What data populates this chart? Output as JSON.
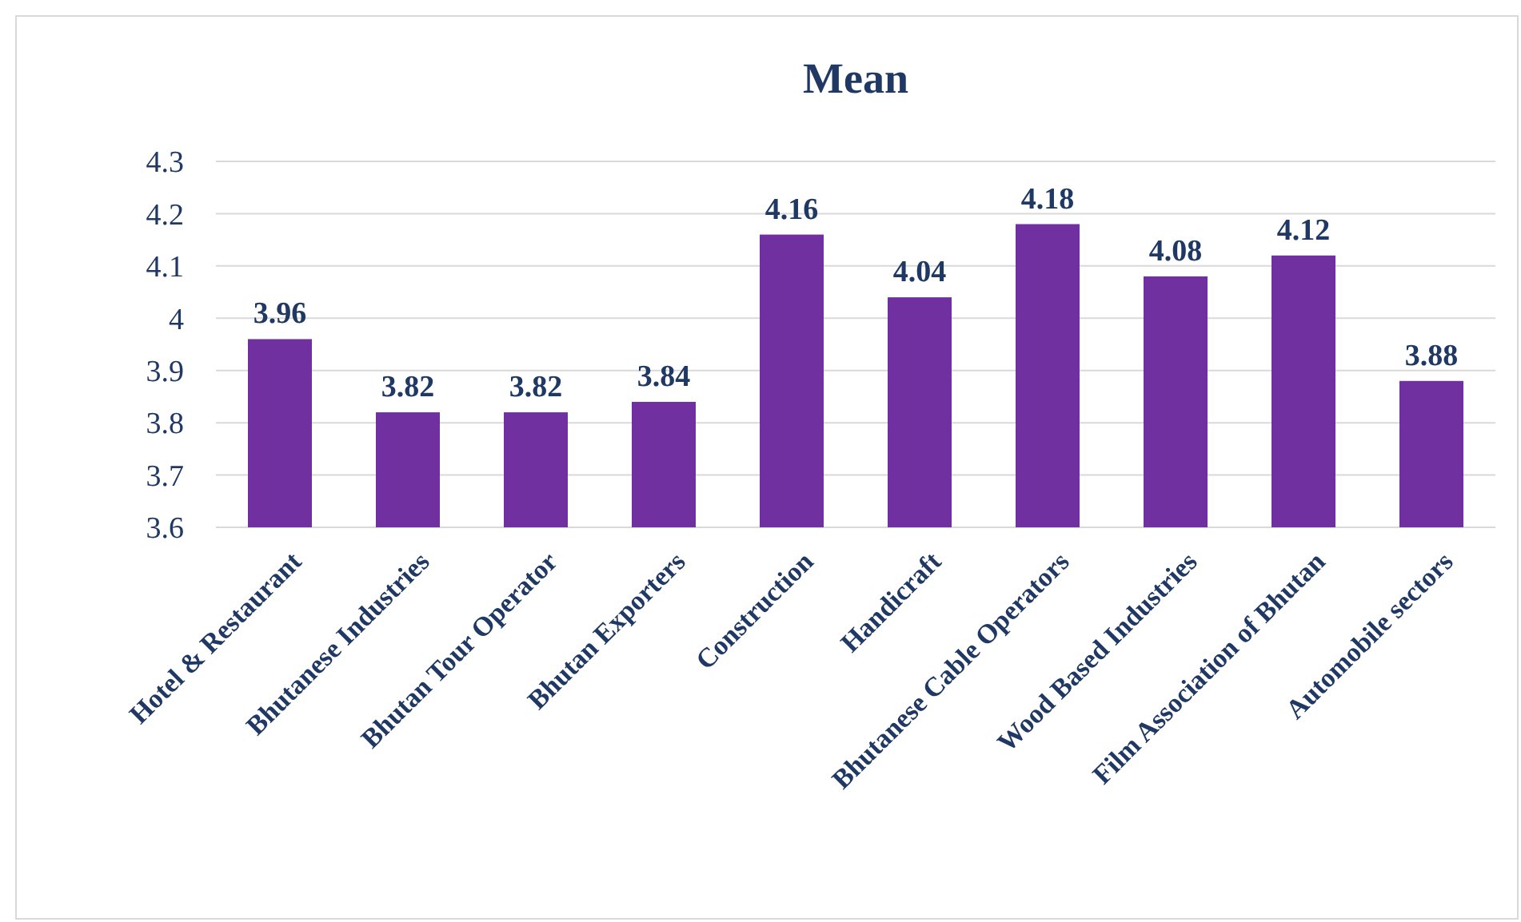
{
  "chart_data": {
    "type": "bar",
    "title": "Mean",
    "categories": [
      "Hotel & Restaurant",
      "Bhutanese Industries",
      "Bhutan Tour Operator",
      "Bhutan Exporters",
      "Construction",
      "Handicraft",
      "Bhutanese Cable Operators",
      "Wood Based Industries",
      "Film Association of Bhutan",
      "Automobile sectors"
    ],
    "values": [
      3.96,
      3.82,
      3.82,
      3.84,
      4.16,
      4.04,
      4.18,
      4.08,
      4.12,
      3.88
    ],
    "color": "#7030a0",
    "ylim": [
      3.6,
      4.3
    ],
    "yticks": [
      3.6,
      3.7,
      3.8,
      3.9,
      4,
      4.1,
      4.2,
      4.3
    ],
    "grid": "y",
    "data_labels": true
  }
}
